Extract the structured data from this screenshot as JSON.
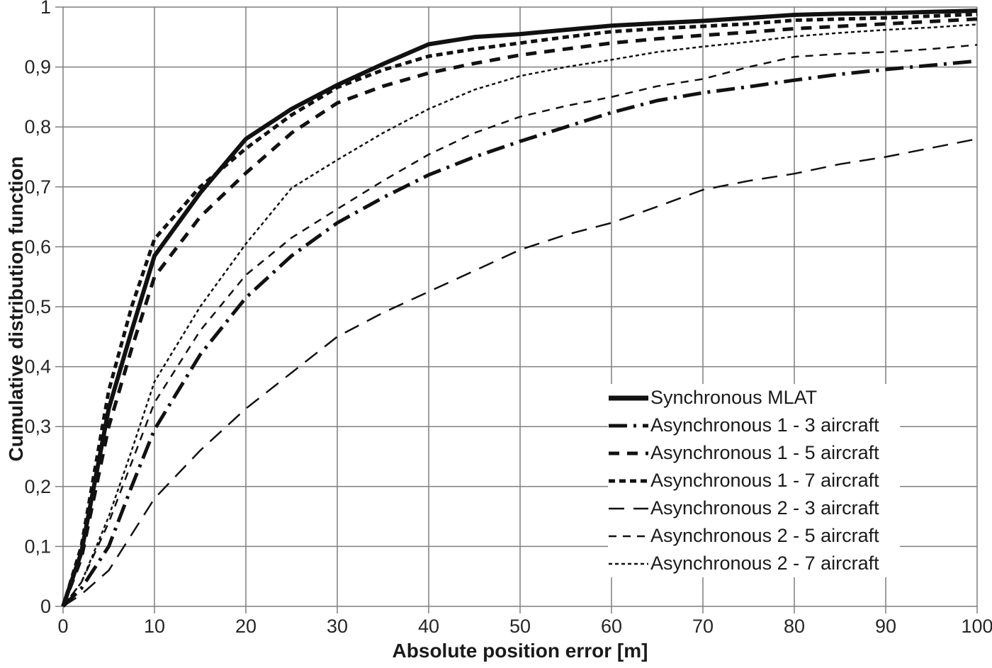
{
  "figure": {
    "background": "#ffffff"
  },
  "chart_data": {
    "type": "line",
    "title": "",
    "xlabel": "Absolute position error [m]",
    "ylabel": "Cumulative distribution function",
    "xlim": [
      0,
      100
    ],
    "ylim": [
      0,
      1
    ],
    "grid": "both",
    "grid_color": "#7f7f7f",
    "line_color": "#111111",
    "legend_position": "inside lower right",
    "x_ticks": {
      "values": [
        0,
        10,
        20,
        30,
        40,
        50,
        60,
        70,
        80,
        90,
        100
      ],
      "labels": [
        "0",
        "10",
        "20",
        "30",
        "40",
        "50",
        "60",
        "70",
        "80",
        "90",
        "100"
      ]
    },
    "y_ticks": {
      "values": [
        0,
        0.1,
        0.2,
        0.3,
        0.4,
        0.5,
        0.6,
        0.7,
        0.8,
        0.9,
        1
      ],
      "labels": [
        "0",
        "0,1",
        "0,2",
        "0,3",
        "0,4",
        "0,5",
        "0,6",
        "0,7",
        "0,8",
        "0,9",
        "1"
      ]
    },
    "styles": {
      "solid-thick": {
        "w": 6,
        "dash": ""
      },
      "dashdot-thick": {
        "w": 5,
        "dash": "26 9 4 9"
      },
      "dash-thick": {
        "w": 5,
        "dash": "15 11"
      },
      "shortdash-thick": {
        "w": 5,
        "dash": "9 6"
      },
      "longdash-thin": {
        "w": 2.5,
        "dash": "22 13"
      },
      "dash-thin": {
        "w": 2.5,
        "dash": "11 9"
      },
      "shortdash-thin": {
        "w": 2.5,
        "dash": "5 4"
      }
    },
    "x": [
      0,
      2,
      5,
      7.5,
      10,
      15,
      20,
      25,
      30,
      35,
      40,
      45,
      50,
      55,
      60,
      65,
      70,
      75,
      80,
      85,
      90,
      95,
      100
    ],
    "series": [
      {
        "name": "Synchronous MLAT",
        "style": "solid-thick",
        "values": [
          0,
          0.09,
          0.33,
          0.46,
          0.585,
          0.69,
          0.78,
          0.83,
          0.87,
          0.905,
          0.938,
          0.95,
          0.955,
          0.962,
          0.969,
          0.973,
          0.977,
          0.982,
          0.987,
          0.989,
          0.99,
          0.992,
          0.994
        ]
      },
      {
        "name": "Asynchronous 1 - 3 aircraft",
        "style": "dashdot-thick",
        "values": [
          0,
          0.03,
          0.1,
          0.2,
          0.295,
          0.42,
          0.515,
          0.585,
          0.64,
          0.682,
          0.72,
          0.75,
          0.776,
          0.8,
          0.824,
          0.844,
          0.857,
          0.867,
          0.878,
          0.888,
          0.896,
          0.903,
          0.91
        ]
      },
      {
        "name": "Asynchronous 1 - 5 aircraft",
        "style": "dash-thick",
        "values": [
          0,
          0.08,
          0.3,
          0.43,
          0.55,
          0.65,
          0.723,
          0.79,
          0.84,
          0.868,
          0.89,
          0.906,
          0.92,
          0.93,
          0.94,
          0.947,
          0.953,
          0.958,
          0.964,
          0.968,
          0.972,
          0.976,
          0.98
        ]
      },
      {
        "name": "Asynchronous 1 - 7 aircraft",
        "style": "shortdash-thick",
        "values": [
          0,
          0.1,
          0.36,
          0.5,
          0.613,
          0.7,
          0.764,
          0.82,
          0.866,
          0.895,
          0.918,
          0.93,
          0.94,
          0.95,
          0.959,
          0.964,
          0.968,
          0.972,
          0.978,
          0.98,
          0.982,
          0.985,
          0.988
        ]
      },
      {
        "name": "Asynchronous 2 - 3 aircraft",
        "style": "longdash-thin",
        "values": [
          0,
          0.02,
          0.06,
          0.12,
          0.18,
          0.26,
          0.33,
          0.39,
          0.45,
          0.49,
          0.525,
          0.56,
          0.595,
          0.62,
          0.64,
          0.667,
          0.695,
          0.71,
          0.722,
          0.738,
          0.75,
          0.765,
          0.78
        ]
      },
      {
        "name": "Asynchronous 2 - 5 aircraft",
        "style": "dash-thin",
        "values": [
          0,
          0.04,
          0.14,
          0.24,
          0.34,
          0.46,
          0.553,
          0.615,
          0.663,
          0.71,
          0.754,
          0.79,
          0.817,
          0.835,
          0.85,
          0.868,
          0.88,
          0.9,
          0.917,
          0.922,
          0.925,
          0.93,
          0.937
        ]
      },
      {
        "name": "Asynchronous 2 - 7 aircraft",
        "style": "shortdash-thin",
        "values": [
          0,
          0.04,
          0.15,
          0.26,
          0.375,
          0.5,
          0.605,
          0.698,
          0.745,
          0.79,
          0.83,
          0.862,
          0.885,
          0.9,
          0.912,
          0.925,
          0.934,
          0.942,
          0.951,
          0.957,
          0.962,
          0.966,
          0.971
        ]
      }
    ]
  }
}
